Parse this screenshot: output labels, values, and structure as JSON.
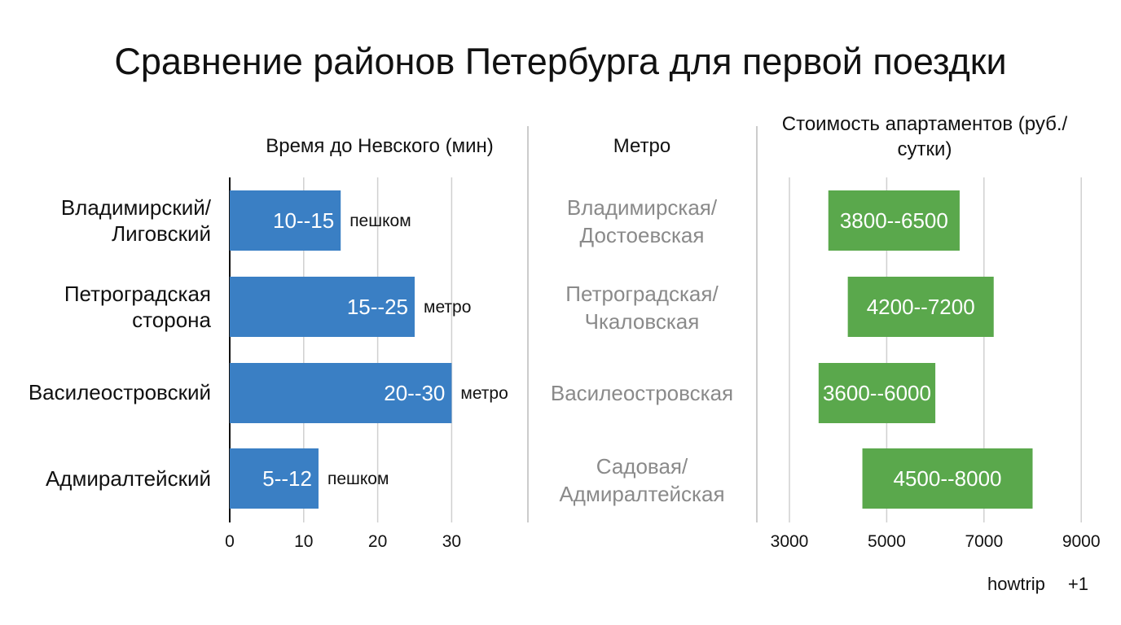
{
  "title": "Сравнение районов Петербурга для первой поездки",
  "headers": {
    "time": "Время до Невского (мин)",
    "metro": "Метро",
    "cost": "Стоимость апартаментов (руб./сутки)"
  },
  "branding": {
    "name": "howtrip",
    "extra": "+1"
  },
  "chart_data": [
    {
      "type": "bar",
      "orientation": "horizontal",
      "title": "Время до Невского (мин)",
      "categories": [
        "Владимирский/ Лиговский",
        "Петроградская сторона",
        "Василеостровский",
        "Адмиралтейский"
      ],
      "ranges": [
        [
          10,
          15
        ],
        [
          15,
          25
        ],
        [
          20,
          30
        ],
        [
          5,
          12
        ]
      ],
      "bar_labels": [
        "10--15",
        "15--25",
        "20--30",
        "5--12"
      ],
      "modes": [
        "пешком",
        "метро",
        "метро",
        "пешком"
      ],
      "xlim": [
        0,
        38
      ],
      "xticks": [
        0,
        10,
        20,
        30
      ],
      "grid": true,
      "color": "#3a7fc4"
    },
    {
      "type": "table",
      "title": "Метро",
      "rows": [
        "Владимирская/ Достоевская",
        "Петроградская/ Чкаловская",
        "Василеостровская",
        "Садовая/ Адмиралтейская"
      ]
    },
    {
      "type": "bar",
      "orientation": "horizontal",
      "subtype": "floating-range",
      "title": "Стоимость апартаментов (руб./сутки)",
      "ranges": [
        [
          3800,
          6500
        ],
        [
          4200,
          7200
        ],
        [
          3600,
          6000
        ],
        [
          4500,
          8000
        ]
      ],
      "bar_labels": [
        "3800--6500",
        "4200--7200",
        "3600--6000",
        "4500--8000"
      ],
      "xlim": [
        3000,
        9000
      ],
      "xticks": [
        3000,
        5000,
        7000,
        9000
      ],
      "grid": true,
      "color": "#5aa84c"
    }
  ]
}
